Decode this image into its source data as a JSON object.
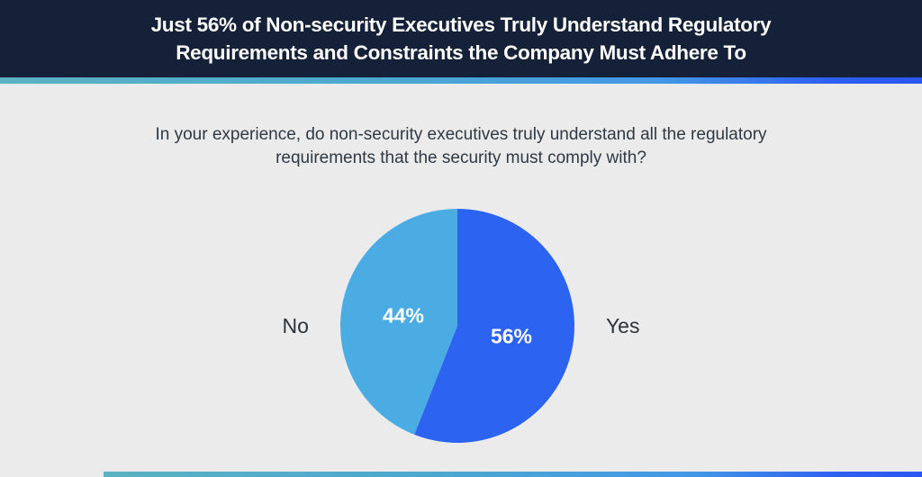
{
  "header": {
    "title_lines": [
      "Just 56% of Non-security Executives Truly Understand Regulatory",
      "Requirements and Constraints the Company Must Adhere To"
    ]
  },
  "question": {
    "lines": [
      "In your experience, do non-security executives truly understand all the regulatory",
      "requirements that the security must comply with?"
    ]
  },
  "chart_data": {
    "type": "pie",
    "title": "In your experience, do non-security executives truly understand all the regulatory requirements that the security must comply with?",
    "categories": [
      "Yes",
      "No"
    ],
    "values": [
      56,
      44
    ],
    "data_labels": [
      "56%",
      "44%"
    ],
    "colors": [
      "#2d63f1",
      "#4bace4"
    ],
    "start_angle": "top",
    "direction": "clockwise",
    "label_position": "outside-sides",
    "legend": "none"
  },
  "theme": {
    "header_bg": "#152138",
    "header_text": "#ffffff",
    "body_bg": "#ebebeb",
    "question_text": "#2f3943",
    "label_text": "#2c333a",
    "percent_text": "#ffffff",
    "gradient_teal": "#5ab2c1",
    "gradient_sky": "#4397e6",
    "gradient_blue": "#2e5ff0",
    "pie_yes": "#2d63f1",
    "pie_no": "#4bace4"
  }
}
